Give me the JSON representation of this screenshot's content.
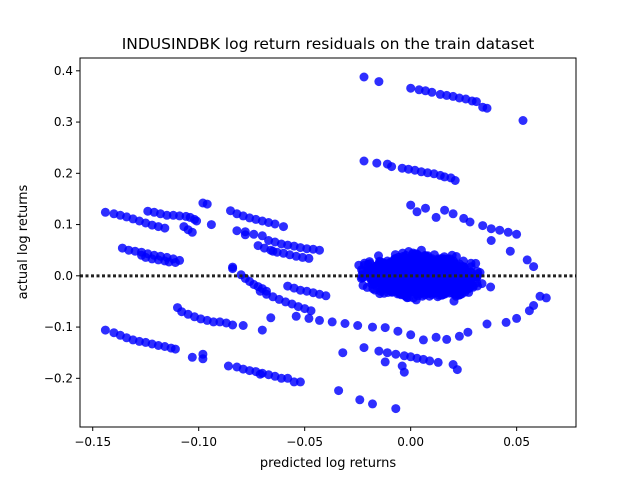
{
  "chart_data": {
    "type": "scatter",
    "title": "INDUSINDBK log return residuals on the train dataset",
    "xlabel": "predicted log returns",
    "ylabel": "actual log returns",
    "xlim": [
      -0.156,
      0.078
    ],
    "ylim": [
      -0.295,
      0.425
    ],
    "xticks": [
      -0.15,
      -0.1,
      -0.05,
      0.0,
      0.05
    ],
    "xtick_labels": [
      "−0.15",
      "−0.10",
      "−0.05",
      "0.00",
      "0.05"
    ],
    "yticks": [
      -0.2,
      -0.1,
      0.0,
      0.1,
      0.2,
      0.3,
      0.4
    ],
    "ytick_labels": [
      "−0.2",
      "−0.1",
      "0.0",
      "0.1",
      "0.2",
      "0.3",
      "0.4"
    ],
    "reference_line": {
      "y": 0.0,
      "style": "dotted",
      "color": "#222222"
    },
    "grid": false,
    "marker_color": "#0000ff",
    "series": [
      {
        "points": [
          [
            -0.022,
            0.388
          ],
          [
            -0.015,
            0.379
          ],
          [
            0.0,
            0.366
          ],
          [
            0.004,
            0.363
          ],
          [
            0.007,
            0.361
          ],
          [
            0.01,
            0.358
          ],
          [
            0.014,
            0.354
          ],
          [
            0.017,
            0.352
          ],
          [
            0.02,
            0.35
          ],
          [
            0.023,
            0.347
          ],
          [
            0.026,
            0.345
          ],
          [
            0.029,
            0.341
          ],
          [
            0.031,
            0.34
          ],
          [
            0.034,
            0.329
          ],
          [
            0.036,
            0.327
          ],
          [
            0.053,
            0.303
          ],
          [
            -0.022,
            0.224
          ],
          [
            -0.016,
            0.22
          ],
          [
            -0.011,
            0.218
          ],
          [
            -0.009,
            0.213
          ],
          [
            -0.004,
            0.21
          ],
          [
            -0.001,
            0.208
          ],
          [
            0.002,
            0.206
          ],
          [
            0.005,
            0.203
          ],
          [
            0.008,
            0.201
          ],
          [
            0.011,
            0.199
          ],
          [
            0.014,
            0.196
          ],
          [
            0.016,
            0.193
          ],
          [
            0.019,
            0.191
          ],
          [
            0.021,
            0.186
          ],
          [
            -0.144,
            0.124
          ],
          [
            -0.14,
            0.121
          ],
          [
            -0.137,
            0.118
          ],
          [
            -0.134,
            0.115
          ],
          [
            -0.131,
            0.111
          ],
          [
            -0.128,
            0.107
          ],
          [
            -0.125,
            0.103
          ],
          [
            -0.122,
            0.099
          ],
          [
            -0.119,
            0.096
          ],
          [
            -0.116,
            0.093
          ],
          [
            -0.124,
            0.126
          ],
          [
            -0.121,
            0.124
          ],
          [
            -0.118,
            0.121
          ],
          [
            -0.115,
            0.118
          ],
          [
            -0.112,
            0.118
          ],
          [
            -0.109,
            0.117
          ],
          [
            -0.106,
            0.116
          ],
          [
            -0.104,
            0.114
          ],
          [
            -0.102,
            0.11
          ],
          [
            -0.101,
            0.107
          ],
          [
            -0.107,
            0.096
          ],
          [
            -0.105,
            0.09
          ],
          [
            -0.103,
            0.085
          ],
          [
            -0.098,
            0.142
          ],
          [
            -0.096,
            0.14
          ],
          [
            -0.094,
            0.1
          ],
          [
            -0.085,
            0.127
          ],
          [
            -0.082,
            0.121
          ],
          [
            -0.079,
            0.117
          ],
          [
            -0.076,
            0.113
          ],
          [
            -0.073,
            0.11
          ],
          [
            -0.07,
            0.107
          ],
          [
            -0.067,
            0.104
          ],
          [
            -0.064,
            0.101
          ],
          [
            -0.06,
            0.096
          ],
          [
            -0.082,
            0.088
          ],
          [
            -0.078,
            0.086
          ],
          [
            -0.074,
            0.081
          ],
          [
            -0.07,
            0.078
          ],
          [
            -0.078,
            0.08
          ],
          [
            -0.136,
            0.054
          ],
          [
            -0.133,
            0.05
          ],
          [
            -0.13,
            0.048
          ],
          [
            -0.127,
            0.046
          ],
          [
            -0.124,
            0.043
          ],
          [
            -0.121,
            0.04
          ],
          [
            -0.118,
            0.038
          ],
          [
            -0.115,
            0.036
          ],
          [
            -0.112,
            0.033
          ],
          [
            -0.109,
            0.03
          ],
          [
            -0.127,
            0.04
          ],
          [
            -0.125,
            0.036
          ],
          [
            -0.122,
            0.033
          ],
          [
            -0.119,
            0.031
          ],
          [
            -0.116,
            0.029
          ],
          [
            -0.114,
            0.027
          ],
          [
            -0.111,
            0.026
          ],
          [
            -0.084,
            0.017
          ],
          [
            -0.084,
            0.014
          ],
          [
            -0.08,
            0.002
          ],
          [
            -0.078,
            -0.005
          ],
          [
            -0.076,
            -0.011
          ],
          [
            -0.074,
            -0.017
          ],
          [
            -0.072,
            -0.021
          ],
          [
            -0.07,
            -0.025
          ],
          [
            -0.068,
            -0.03
          ],
          [
            -0.072,
            0.059
          ],
          [
            -0.069,
            0.054
          ],
          [
            -0.066,
            0.05
          ],
          [
            -0.063,
            0.046
          ],
          [
            -0.06,
            0.044
          ],
          [
            -0.057,
            0.041
          ],
          [
            -0.054,
            0.038
          ],
          [
            -0.051,
            0.036
          ],
          [
            -0.048,
            0.034
          ],
          [
            -0.067,
            0.069
          ],
          [
            -0.064,
            0.066
          ],
          [
            -0.061,
            0.062
          ],
          [
            -0.058,
            0.06
          ],
          [
            -0.055,
            0.058
          ],
          [
            -0.052,
            0.055
          ],
          [
            -0.049,
            0.053
          ],
          [
            -0.046,
            0.052
          ],
          [
            -0.043,
            0.05
          ],
          [
            -0.071,
            -0.03
          ],
          [
            -0.068,
            -0.036
          ],
          [
            -0.065,
            -0.041
          ],
          [
            -0.062,
            -0.046
          ],
          [
            -0.059,
            -0.051
          ],
          [
            -0.056,
            -0.055
          ],
          [
            -0.053,
            -0.06
          ],
          [
            -0.05,
            -0.064
          ],
          [
            -0.047,
            -0.068
          ],
          [
            -0.058,
            -0.02
          ],
          [
            -0.055,
            -0.024
          ],
          [
            -0.052,
            -0.028
          ],
          [
            -0.049,
            -0.03
          ],
          [
            -0.046,
            -0.033
          ],
          [
            -0.043,
            -0.036
          ],
          [
            -0.04,
            -0.039
          ],
          [
            -0.11,
            -0.062
          ],
          [
            -0.108,
            -0.07
          ],
          [
            -0.105,
            -0.075
          ],
          [
            -0.102,
            -0.08
          ],
          [
            -0.099,
            -0.084
          ],
          [
            -0.096,
            -0.087
          ],
          [
            -0.093,
            -0.09
          ],
          [
            -0.09,
            -0.09
          ],
          [
            -0.087,
            -0.092
          ],
          [
            -0.084,
            -0.096
          ],
          [
            -0.079,
            -0.097
          ],
          [
            -0.07,
            -0.106
          ],
          [
            -0.066,
            -0.082
          ],
          [
            -0.144,
            -0.106
          ],
          [
            -0.14,
            -0.111
          ],
          [
            -0.137,
            -0.116
          ],
          [
            -0.134,
            -0.121
          ],
          [
            -0.131,
            -0.125
          ],
          [
            -0.128,
            -0.128
          ],
          [
            -0.125,
            -0.13
          ],
          [
            -0.122,
            -0.133
          ],
          [
            -0.119,
            -0.136
          ],
          [
            -0.116,
            -0.138
          ],
          [
            -0.113,
            -0.141
          ],
          [
            -0.111,
            -0.143
          ],
          [
            -0.103,
            -0.159
          ],
          [
            -0.098,
            -0.153
          ],
          [
            -0.098,
            -0.162
          ],
          [
            -0.086,
            -0.176
          ],
          [
            -0.082,
            -0.178
          ],
          [
            -0.079,
            -0.182
          ],
          [
            -0.076,
            -0.185
          ],
          [
            -0.073,
            -0.187
          ],
          [
            -0.07,
            -0.19
          ],
          [
            -0.067,
            -0.193
          ],
          [
            -0.064,
            -0.196
          ],
          [
            -0.061,
            -0.2
          ],
          [
            -0.055,
            -0.207
          ],
          [
            -0.052,
            -0.207
          ],
          [
            -0.058,
            -0.2
          ],
          [
            -0.065,
            0.048
          ],
          [
            -0.032,
            -0.15
          ],
          [
            -0.022,
            -0.14
          ],
          [
            -0.015,
            -0.147
          ],
          [
            -0.011,
            -0.15
          ],
          [
            -0.007,
            -0.153
          ],
          [
            -0.003,
            -0.156
          ],
          [
            0.0,
            -0.158
          ],
          [
            0.003,
            -0.161
          ],
          [
            0.006,
            -0.163
          ],
          [
            0.009,
            -0.166
          ],
          [
            0.013,
            -0.169
          ],
          [
            0.02,
            -0.173
          ],
          [
            -0.012,
            -0.168
          ],
          [
            -0.004,
            -0.176
          ],
          [
            -0.034,
            -0.224
          ],
          [
            -0.024,
            -0.242
          ],
          [
            -0.018,
            -0.25
          ],
          [
            -0.007,
            -0.259
          ],
          [
            -0.003,
            -0.188
          ],
          [
            0.022,
            -0.183
          ],
          [
            -0.071,
            -0.192
          ],
          [
            0.0,
            0.138
          ],
          [
            0.003,
            0.125
          ],
          [
            0.007,
            0.132
          ],
          [
            0.012,
            0.114
          ],
          [
            0.016,
            0.128
          ],
          [
            0.02,
            0.121
          ],
          [
            0.025,
            0.112
          ],
          [
            0.028,
            0.105
          ],
          [
            0.034,
            0.098
          ],
          [
            0.038,
            0.092
          ],
          [
            0.042,
            0.089
          ],
          [
            0.046,
            0.085
          ],
          [
            0.05,
            0.081
          ],
          [
            0.038,
            0.069
          ],
          [
            0.047,
            0.048
          ],
          [
            0.055,
            0.031
          ],
          [
            0.058,
            0.018
          ],
          [
            0.061,
            -0.04
          ],
          [
            0.064,
            -0.043
          ],
          [
            0.058,
            -0.058
          ],
          [
            0.056,
            -0.068
          ],
          [
            0.05,
            -0.083
          ],
          [
            0.045,
            -0.091
          ],
          [
            0.036,
            -0.094
          ],
          [
            0.027,
            -0.11
          ],
          [
            0.023,
            -0.118
          ],
          [
            0.017,
            -0.124
          ],
          [
            0.012,
            -0.12
          ],
          [
            0.006,
            -0.125
          ],
          [
            0.0,
            -0.115
          ],
          [
            -0.006,
            -0.108
          ],
          [
            -0.012,
            -0.101
          ],
          [
            -0.018,
            -0.1
          ],
          [
            -0.025,
            -0.097
          ],
          [
            -0.031,
            -0.093
          ],
          [
            -0.037,
            -0.09
          ],
          [
            -0.043,
            -0.087
          ],
          [
            -0.048,
            -0.083
          ],
          [
            -0.054,
            -0.079
          ]
        ]
      }
    ],
    "dense_cloud": {
      "center": [
        0.005,
        0.0
      ],
      "x_spread": 0.04,
      "y_spread": 0.06
    }
  }
}
